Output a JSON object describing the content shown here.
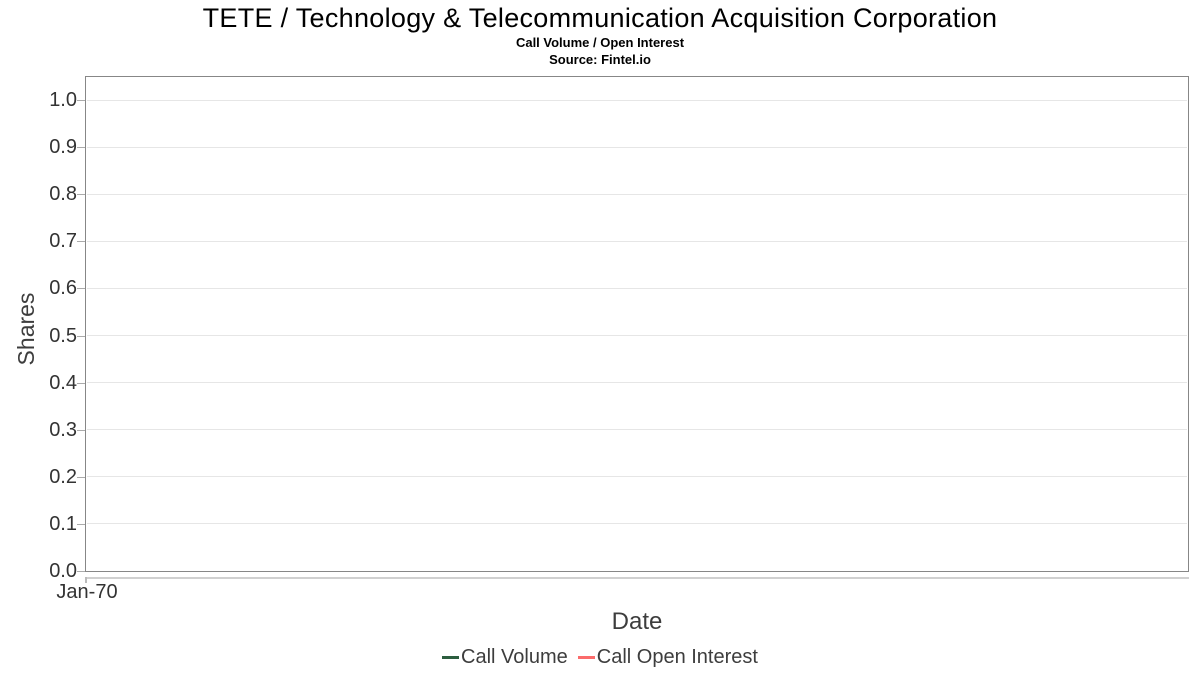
{
  "chart": {
    "title": "TETE / Technology & Telecommunication Acquisition Corporation",
    "subtitle": "Call Volume / Open Interest",
    "source": "Source: Fintel.io"
  },
  "chart_data": {
    "type": "line",
    "title": "TETE / Technology & Telecommunication Acquisition Corporation",
    "subtitle": "Call Volume / Open Interest",
    "source_note": "Source: Fintel.io",
    "xlabel": "Date",
    "ylabel": "Shares",
    "x_tick_labels": [
      "Jan-70"
    ],
    "y_tick_labels": [
      "0.0",
      "0.1",
      "0.2",
      "0.3",
      "0.4",
      "0.5",
      "0.6",
      "0.7",
      "0.8",
      "0.9",
      "1.0"
    ],
    "ylim": [
      0.0,
      1.05
    ],
    "grid": true,
    "legend_position": "bottom",
    "series": [
      {
        "name": "Call Volume",
        "color": "#2c5e3f",
        "values": []
      },
      {
        "name": "Call Open Interest",
        "color": "#fb6b6b",
        "values": []
      }
    ]
  },
  "colors": {
    "plot_border": "#878787",
    "gridline": "#e6e6e6",
    "axis_line": "#d0d0d0",
    "tick_mark": "#aaaaaa",
    "tick_label": "#333333",
    "axis_title": "#3d3d3d",
    "legend_text": "#3d3d3d"
  }
}
